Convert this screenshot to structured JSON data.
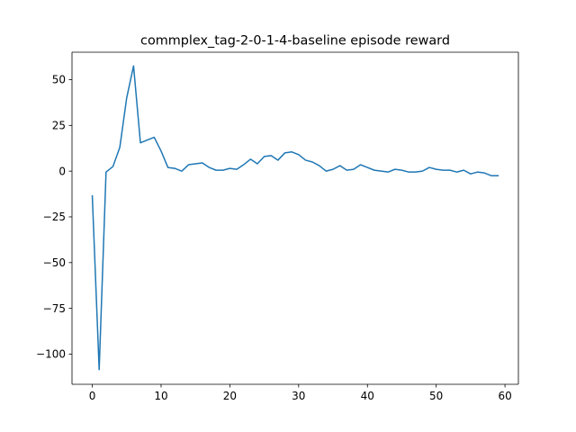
{
  "chart_data": {
    "type": "line",
    "title": "commplex_tag-2-0-1-4-baseline episode reward",
    "xlabel": "",
    "ylabel": "",
    "xlim": [
      -2.95,
      61.95
    ],
    "ylim": [
      -116.5,
      65.0
    ],
    "xticks": [
      0,
      10,
      20,
      30,
      40,
      50,
      60
    ],
    "yticks": [
      -100,
      -75,
      -50,
      -25,
      0,
      25,
      50
    ],
    "xtick_labels": [
      "0",
      "10",
      "20",
      "30",
      "40",
      "50",
      "60"
    ],
    "ytick_labels": [
      "−100",
      "−75",
      "−50",
      "−25",
      "0",
      "25",
      "50"
    ],
    "grid": false,
    "series": [
      {
        "color": "#1f77b4",
        "x": [
          0,
          1,
          2,
          3,
          4,
          5,
          6,
          7,
          8,
          9,
          10,
          11,
          12,
          13,
          14,
          15,
          16,
          17,
          18,
          19,
          20,
          21,
          22,
          23,
          24,
          25,
          26,
          27,
          28,
          29,
          30,
          31,
          32,
          33,
          34,
          35,
          36,
          37,
          38,
          39,
          40,
          41,
          42,
          43,
          44,
          45,
          46,
          47,
          48,
          49,
          50,
          51,
          52,
          53,
          54,
          55,
          56,
          57,
          58,
          59
        ],
        "values": [
          -13.5,
          -108.5,
          -0.5,
          2.5,
          13.0,
          40.0,
          57.5,
          15.5,
          17.0,
          18.5,
          11.0,
          2.0,
          1.5,
          0.0,
          3.5,
          4.0,
          4.5,
          2.0,
          0.5,
          0.5,
          1.5,
          1.0,
          3.5,
          6.5,
          4.0,
          8.0,
          8.5,
          6.0,
          10.0,
          10.5,
          9.0,
          6.0,
          5.0,
          3.0,
          0.0,
          1.0,
          3.0,
          0.5,
          1.0,
          3.5,
          2.0,
          0.5,
          0.0,
          -0.5,
          1.0,
          0.5,
          -0.5,
          -0.5,
          0.0,
          2.0,
          1.0,
          0.5,
          0.5,
          -0.5,
          0.5,
          -1.5,
          -0.5,
          -1.0,
          -2.5,
          -2.5
        ]
      }
    ]
  }
}
